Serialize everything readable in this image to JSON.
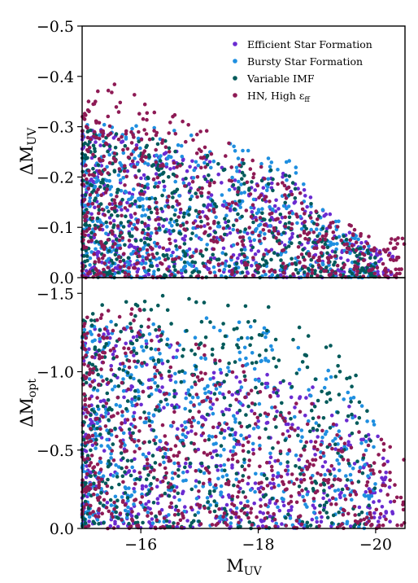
{
  "chart_data": [
    {
      "type": "scatter",
      "panel": "top",
      "ylabel": "ΔM",
      "ylabel_sub": "UV",
      "ylim": [
        0.0,
        -0.5
      ],
      "xlim": [
        -15.0,
        -20.5
      ],
      "yticks": [
        {
          "value": -0.5,
          "label": "−0.5"
        },
        {
          "value": -0.4,
          "label": "−0.4"
        },
        {
          "value": -0.3,
          "label": "−0.3"
        },
        {
          "value": -0.2,
          "label": "−0.2"
        },
        {
          "value": -0.1,
          "label": "−0.1"
        },
        {
          "value": 0.0,
          "label": "0.0"
        }
      ],
      "legend": {
        "placement": "top-right",
        "entries": [
          {
            "label": "Efficient Star Formation",
            "color": "#6a2bd1"
          },
          {
            "label": "Bursty Star Formation",
            "color": "#1f8fe0"
          },
          {
            "label": "Variable IMF",
            "color": "#005a5a"
          },
          {
            "label": "HN, High ε",
            "sub": "ff",
            "color": "#8e1a55"
          }
        ]
      },
      "series": [
        {
          "name": "Efficient Star Formation",
          "color": "#6a2bd1",
          "envelope": [
            [
              -15.0,
              -0.3
            ],
            [
              -16.0,
              -0.28
            ],
            [
              -17.0,
              -0.24
            ],
            [
              -18.0,
              -0.2
            ],
            [
              -18.5,
              -0.22
            ],
            [
              -19.0,
              -0.15
            ],
            [
              -19.5,
              -0.1
            ],
            [
              -20.0,
              -0.06
            ],
            [
              -20.3,
              -0.05
            ]
          ]
        },
        {
          "name": "Bursty Star Formation",
          "color": "#1f8fe0",
          "envelope": [
            [
              -15.0,
              -0.32
            ],
            [
              -16.0,
              -0.3
            ],
            [
              -17.0,
              -0.3
            ],
            [
              -17.5,
              -0.28
            ],
            [
              -18.0,
              -0.24
            ],
            [
              -18.7,
              -0.23
            ],
            [
              -19.0,
              -0.15
            ],
            [
              -19.5,
              -0.1
            ],
            [
              -20.0,
              -0.06
            ]
          ]
        },
        {
          "name": "Variable IMF",
          "color": "#005a5a",
          "envelope": [
            [
              -15.0,
              -0.3
            ],
            [
              -16.0,
              -0.28
            ],
            [
              -17.0,
              -0.26
            ],
            [
              -18.0,
              -0.22
            ],
            [
              -18.5,
              -0.23
            ],
            [
              -19.0,
              -0.13
            ],
            [
              -19.5,
              -0.08
            ],
            [
              -20.0,
              -0.05
            ]
          ]
        },
        {
          "name": "HN, High ε_ff",
          "color": "#8e1a55",
          "envelope": [
            [
              -15.0,
              -0.38
            ],
            [
              -15.5,
              -0.39
            ],
            [
              -16.0,
              -0.36
            ],
            [
              -16.5,
              -0.33
            ],
            [
              -17.0,
              -0.3
            ],
            [
              -18.0,
              -0.24
            ],
            [
              -19.0,
              -0.14
            ],
            [
              -20.0,
              -0.08
            ],
            [
              -20.5,
              -0.08
            ]
          ]
        }
      ]
    },
    {
      "type": "scatter",
      "panel": "bottom",
      "ylabel": "ΔM",
      "ylabel_sub": "opt",
      "xlabel": "M",
      "xlabel_sub": "UV",
      "ylim": [
        0.0,
        -1.6
      ],
      "xlim": [
        -15.0,
        -20.5
      ],
      "yticks": [
        {
          "value": -1.5,
          "label": "−1.5"
        },
        {
          "value": -1.0,
          "label": "−1.0"
        },
        {
          "value": -0.5,
          "label": "−0.5"
        },
        {
          "value": 0.0,
          "label": "0.0"
        }
      ],
      "xticks": [
        {
          "value": -16,
          "label": "−16"
        },
        {
          "value": -18,
          "label": "−18"
        },
        {
          "value": -20,
          "label": "−20"
        }
      ],
      "series": [
        {
          "name": "Efficient Star Formation",
          "color": "#6a2bd1",
          "envelope": [
            [
              -15.0,
              -1.3
            ],
            [
              -16.0,
              -1.3
            ],
            [
              -17.0,
              -1.1
            ],
            [
              -18.0,
              -1.0
            ],
            [
              -19.0,
              -0.9
            ],
            [
              -19.5,
              -0.8
            ],
            [
              -20.0,
              -0.6
            ],
            [
              -20.3,
              -0.5
            ]
          ]
        },
        {
          "name": "Bursty Star Formation",
          "color": "#1f8fe0",
          "envelope": [
            [
              -15.0,
              -1.3
            ],
            [
              -16.0,
              -1.35
            ],
            [
              -17.0,
              -1.35
            ],
            [
              -18.0,
              -1.3
            ],
            [
              -18.5,
              -1.2
            ],
            [
              -19.0,
              -1.1
            ],
            [
              -19.5,
              -0.9
            ],
            [
              -20.0,
              -0.7
            ]
          ]
        },
        {
          "name": "Variable IMF",
          "color": "#005a5a",
          "envelope": [
            [
              -15.0,
              -1.45
            ],
            [
              -16.0,
              -1.47
            ],
            [
              -16.5,
              -1.5
            ],
            [
              -17.0,
              -1.47
            ],
            [
              -18.0,
              -1.45
            ],
            [
              -19.0,
              -1.3
            ],
            [
              -19.5,
              -1.1
            ],
            [
              -20.0,
              -0.8
            ]
          ]
        },
        {
          "name": "HN, High ε_ff",
          "color": "#8e1a55",
          "envelope": [
            [
              -15.0,
              -1.4
            ],
            [
              -16.0,
              -1.4
            ],
            [
              -17.0,
              -1.2
            ],
            [
              -18.0,
              -1.0
            ],
            [
              -19.0,
              -0.8
            ],
            [
              -20.0,
              -0.6
            ],
            [
              -20.5,
              -0.45
            ]
          ]
        }
      ]
    }
  ]
}
